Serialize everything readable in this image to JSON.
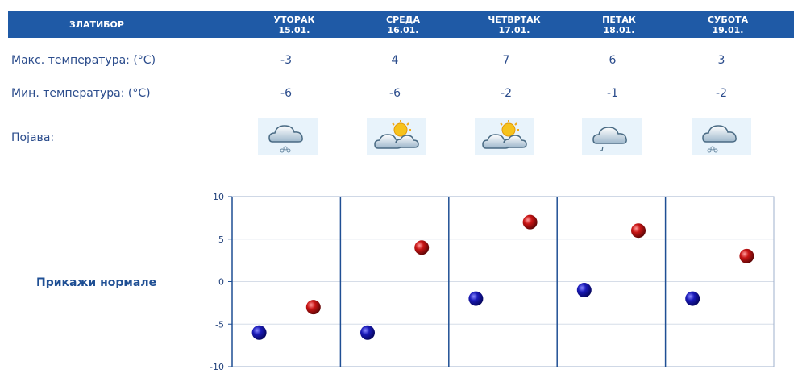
{
  "header": {
    "location": "ЗЛАТИБОР",
    "days": [
      {
        "name": "УТОРАК",
        "date": "15.01."
      },
      {
        "name": "СРЕДА",
        "date": "16.01."
      },
      {
        "name": "ЧЕТВРТАК",
        "date": "17.01."
      },
      {
        "name": "ПЕТАК",
        "date": "18.01."
      },
      {
        "name": "СУБОТА",
        "date": "19.01."
      }
    ]
  },
  "rows": {
    "max_label": "Макс. температура: (°C)",
    "min_label": "Мин. температура: (°C)",
    "phenomenon_label": "Појава:"
  },
  "icons": [
    "cloud-snow-icon",
    "sun-behind-clouds-icon",
    "sun-behind-clouds-icon",
    "cloud-rain-icon",
    "cloud-snow-icon"
  ],
  "show_normals": "Прикажи нормале",
  "colors": {
    "header": "#1f5aa6",
    "min_marker": "#1a1ab8",
    "max_marker": "#c81414",
    "axis": "#1f4f94"
  },
  "chart_data": {
    "type": "scatter",
    "categories": [
      "15.01.",
      "16.01.",
      "17.01.",
      "18.01.",
      "19.01."
    ],
    "series": [
      {
        "values": [
          -6,
          -6,
          -2,
          -1,
          -2
        ]
      },
      {
        "values": [
          -3,
          4,
          7,
          6,
          3
        ]
      }
    ],
    "ylim": [
      -10,
      10
    ],
    "yticks": [
      "10",
      "5",
      "0",
      "-5",
      "-10"
    ],
    "grid": true
  }
}
